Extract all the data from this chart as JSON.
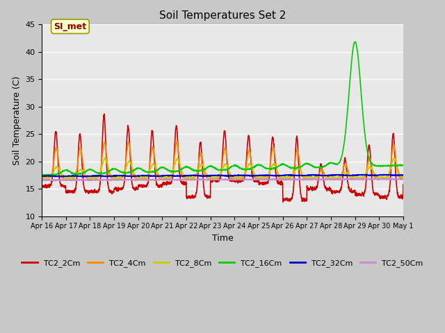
{
  "title": "Soil Temperatures Set 2",
  "xlabel": "Time",
  "ylabel": "Soil Temperature (C)",
  "ylim": [
    10,
    45
  ],
  "xlim": [
    0,
    15
  ],
  "figsize": [
    6.4,
    4.8
  ],
  "dpi": 100,
  "fig_bg": "#c8c8c8",
  "plot_bg": "#e8e8e8",
  "series_colors": {
    "TC2_2Cm": "#cc0000",
    "TC2_4Cm": "#ff8800",
    "TC2_8Cm": "#cccc00",
    "TC2_16Cm": "#00cc00",
    "TC2_32Cm": "#0000cc",
    "TC2_50Cm": "#cc88cc"
  },
  "xtick_labels": [
    "Apr 16",
    "Apr 17",
    "Apr 18",
    "Apr 19",
    "Apr 20",
    "Apr 21",
    "Apr 22",
    "Apr 23",
    "Apr 24",
    "Apr 25",
    "Apr 26",
    "Apr 27",
    "Apr 28",
    "Apr 29",
    "Apr 30",
    "May 1"
  ],
  "yticks": [
    10,
    15,
    20,
    25,
    30,
    35,
    40,
    45
  ],
  "annotation": {
    "text": "SI_met"
  }
}
